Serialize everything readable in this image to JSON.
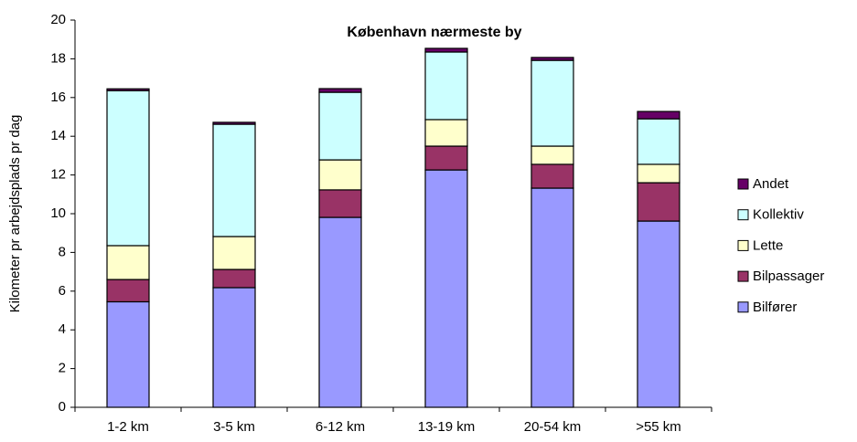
{
  "chart_data": {
    "type": "stacked-bar",
    "title": "København nærmeste by",
    "y_label": "Kilometer pr arbejdsplads pr dag",
    "categories": [
      "1-2 km",
      "3-5 km",
      "6-12 km",
      "13-19 km",
      "20-54 km",
      ">55 km"
    ],
    "series": [
      {
        "name": "Bilfører",
        "color": "#9999ff",
        "values": [
          5.45,
          6.18,
          9.81,
          12.26,
          11.32,
          9.62
        ]
      },
      {
        "name": "Bilpassager",
        "color": "#993366",
        "values": [
          1.15,
          0.94,
          1.42,
          1.23,
          1.23,
          1.98
        ]
      },
      {
        "name": "Lette",
        "color": "#ffffcc",
        "values": [
          1.75,
          1.7,
          1.55,
          1.37,
          0.94,
          0.95
        ]
      },
      {
        "name": "Kollektiv",
        "color": "#ccffff",
        "values": [
          8.0,
          5.8,
          3.49,
          3.49,
          4.43,
          2.35
        ]
      },
      {
        "name": "Andet",
        "color": "#660066",
        "values": [
          0.1,
          0.1,
          0.19,
          0.19,
          0.15,
          0.38
        ]
      }
    ],
    "ylim": [
      0,
      20
    ],
    "yticks": [
      0,
      2,
      4,
      6,
      8,
      10,
      12,
      14,
      16,
      18,
      20
    ]
  }
}
